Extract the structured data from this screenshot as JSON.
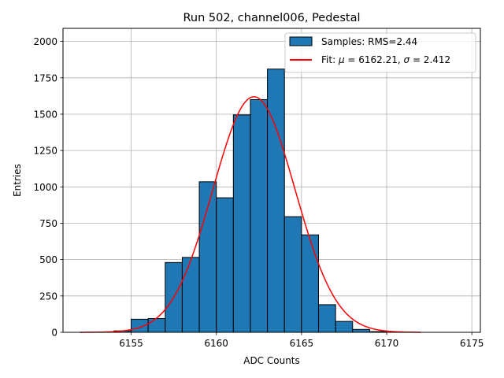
{
  "chart_data": {
    "type": "bar",
    "title": "Run 502, channel006, Pedestal",
    "xlabel": "ADC Counts",
    "ylabel": "Entries",
    "xlim": [
      6151,
      6175.5
    ],
    "ylim": [
      0,
      2090
    ],
    "xticks": [
      6155,
      6160,
      6165,
      6170,
      6175
    ],
    "yticks": [
      0,
      250,
      500,
      750,
      1000,
      1250,
      1500,
      1750,
      2000
    ],
    "grid": true,
    "legend_position": "top-right",
    "histogram": {
      "name": "Samples: RMS=2.44",
      "color": "#1f77b4",
      "bins": [
        {
          "left": 6154,
          "right": 6155,
          "count": 10
        },
        {
          "left": 6155,
          "right": 6156,
          "count": 90
        },
        {
          "left": 6156,
          "right": 6157,
          "count": 95
        },
        {
          "left": 6157,
          "right": 6158,
          "count": 480
        },
        {
          "left": 6158,
          "right": 6159,
          "count": 515
        },
        {
          "left": 6159,
          "right": 6160,
          "count": 1035
        },
        {
          "left": 6160,
          "right": 6161,
          "count": 925
        },
        {
          "left": 6161,
          "right": 6162,
          "count": 1495
        },
        {
          "left": 6162,
          "right": 6163,
          "count": 1600
        },
        {
          "left": 6163,
          "right": 6164,
          "count": 1810
        },
        {
          "left": 6164,
          "right": 6165,
          "count": 795
        },
        {
          "left": 6165,
          "right": 6166,
          "count": 670
        },
        {
          "left": 6166,
          "right": 6167,
          "count": 190
        },
        {
          "left": 6167,
          "right": 6168,
          "count": 75
        },
        {
          "left": 6168,
          "right": 6169,
          "count": 20
        },
        {
          "left": 6169,
          "right": 6170,
          "count": 5
        }
      ]
    },
    "fit": {
      "name": "Fit: μ = 6162.21, σ = 2.412",
      "legend_prefix": "Fit: ",
      "mu_symbol": "μ",
      "mu_text": " = 6162.21, ",
      "sigma_symbol": "σ",
      "sigma_text": " = 2.412",
      "color": "#ff0000",
      "mu": 6162.21,
      "sigma": 2.412,
      "amplitude": 1620,
      "x_range": [
        6152,
        6172
      ]
    }
  }
}
